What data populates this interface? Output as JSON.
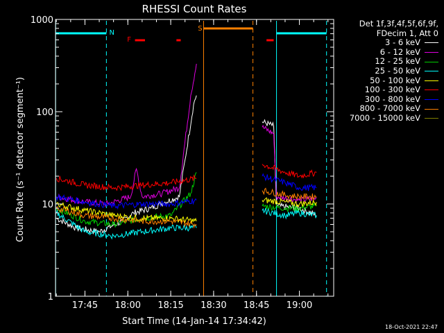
{
  "chart_data": {
    "type": "line",
    "title": "RHESSI Count Rates",
    "xlabel": "Start Time (14-Jan-14 17:34:42)",
    "ylabel": "Count Rate (s⁻¹ detector segment⁻¹)",
    "yscale": "log",
    "ylim": [
      1,
      1000
    ],
    "xlim": [
      "17:34:42",
      "19:12:00"
    ],
    "x_ticks": [
      "17:45",
      "18:00",
      "18:15",
      "18:30",
      "18:45",
      "19:00"
    ],
    "y_ticks": [
      "1",
      "10",
      "100",
      "1000"
    ],
    "legend_header": [
      "Det 1f,3f,4f,5f,6f,9f,",
      "FDecim 1, Att 0"
    ],
    "legend_position": "right",
    "series": [
      {
        "name": "3 - 6 keV",
        "color": "#ffffff",
        "points": [
          [
            "17:35",
            7.0
          ],
          [
            "17:42",
            5.5
          ],
          [
            "17:50",
            5.0
          ],
          [
            "17:58",
            6.5
          ],
          [
            "18:02",
            8.0
          ],
          [
            "18:08",
            9.0
          ],
          [
            "18:13",
            10.5
          ],
          [
            "18:18",
            12.0
          ],
          [
            "18:20",
            30.0
          ],
          [
            "18:23",
            120.0
          ],
          [
            "18:24",
            150.0
          ],
          [
            "18:47",
            78.0
          ],
          [
            "18:51",
            70.0
          ],
          [
            "18:52",
            9.5
          ],
          [
            "19:00",
            9.0
          ],
          [
            "19:06",
            7.5
          ]
        ]
      },
      {
        "name": "6 - 12 keV",
        "color": "#e000e0",
        "points": [
          [
            "17:35",
            12.0
          ],
          [
            "17:45",
            10.5
          ],
          [
            "17:53",
            10.0
          ],
          [
            "18:01",
            12.0
          ],
          [
            "18:03",
            24.0
          ],
          [
            "18:05",
            12.0
          ],
          [
            "18:12",
            13.0
          ],
          [
            "18:18",
            15.0
          ],
          [
            "18:22",
            150.0
          ],
          [
            "18:24",
            330.0
          ],
          [
            "18:47",
            68.0
          ],
          [
            "18:51",
            58.0
          ],
          [
            "18:52",
            12.0
          ],
          [
            "19:00",
            11.0
          ],
          [
            "19:06",
            11.5
          ]
        ]
      },
      {
        "name": "12 - 25 keV",
        "color": "#00d000",
        "points": [
          [
            "17:35",
            9.0
          ],
          [
            "17:45",
            6.5
          ],
          [
            "17:55",
            6.0
          ],
          [
            "18:05",
            7.0
          ],
          [
            "18:15",
            7.5
          ],
          [
            "18:22",
            13.0
          ],
          [
            "18:24",
            22.0
          ],
          [
            "18:47",
            9.5
          ],
          [
            "18:55",
            9.0
          ],
          [
            "19:00",
            9.0
          ],
          [
            "19:06",
            9.5
          ]
        ]
      },
      {
        "name": "25 - 50 keV",
        "color": "#00ffff",
        "points": [
          [
            "17:35",
            8.0
          ],
          [
            "17:45",
            5.0
          ],
          [
            "17:55",
            4.5
          ],
          [
            "18:05",
            5.0
          ],
          [
            "18:15",
            5.5
          ],
          [
            "18:24",
            5.5
          ],
          [
            "18:47",
            8.5
          ],
          [
            "18:55",
            7.5
          ],
          [
            "19:00",
            8.0
          ],
          [
            "19:06",
            7.5
          ]
        ]
      },
      {
        "name": "50 - 100 keV",
        "color": "#ffff00",
        "points": [
          [
            "17:35",
            10.0
          ],
          [
            "17:45",
            8.5
          ],
          [
            "17:55",
            7.5
          ],
          [
            "18:05",
            7.0
          ],
          [
            "18:15",
            7.0
          ],
          [
            "18:24",
            6.5
          ],
          [
            "18:47",
            11.0
          ],
          [
            "18:55",
            10.5
          ],
          [
            "19:00",
            10.0
          ],
          [
            "19:06",
            10.5
          ]
        ]
      },
      {
        "name": "100 - 300 keV",
        "color": "#ff0000",
        "points": [
          [
            "17:35",
            19.0
          ],
          [
            "17:45",
            16.0
          ],
          [
            "17:55",
            15.0
          ],
          [
            "18:05",
            16.0
          ],
          [
            "18:15",
            17.0
          ],
          [
            "18:24",
            19.0
          ],
          [
            "18:47",
            27.0
          ],
          [
            "18:55",
            22.0
          ],
          [
            "19:00",
            20.0
          ],
          [
            "19:06",
            22.0
          ]
        ]
      },
      {
        "name": "300 - 800 keV",
        "color": "#0000ff",
        "points": [
          [
            "17:35",
            12.0
          ],
          [
            "17:45",
            10.5
          ],
          [
            "17:55",
            9.5
          ],
          [
            "18:05",
            10.0
          ],
          [
            "18:15",
            10.0
          ],
          [
            "18:24",
            11.0
          ],
          [
            "18:47",
            20.0
          ],
          [
            "18:55",
            17.0
          ],
          [
            "19:00",
            15.0
          ],
          [
            "19:06",
            15.0
          ]
        ]
      },
      {
        "name": "800 - 7000 keV",
        "color": "#ff8000",
        "points": [
          [
            "17:35",
            9.0
          ],
          [
            "17:45",
            7.5
          ],
          [
            "17:55",
            7.0
          ],
          [
            "18:05",
            6.5
          ],
          [
            "18:15",
            6.5
          ],
          [
            "18:24",
            6.0
          ],
          [
            "18:47",
            14.0
          ],
          [
            "18:55",
            12.5
          ],
          [
            "19:00",
            12.0
          ],
          [
            "19:06",
            12.0
          ]
        ]
      },
      {
        "name": "7000 - 15000 keV",
        "color": "#808000",
        "points": []
      }
    ],
    "markers": [
      {
        "label": "N",
        "color": "#00ffff"
      },
      {
        "label": "F",
        "color": "#ff0000"
      },
      {
        "label": "S",
        "color": "#ff8000"
      }
    ],
    "grid": false
  },
  "timestamp": "18-Oct-2021 22:47"
}
